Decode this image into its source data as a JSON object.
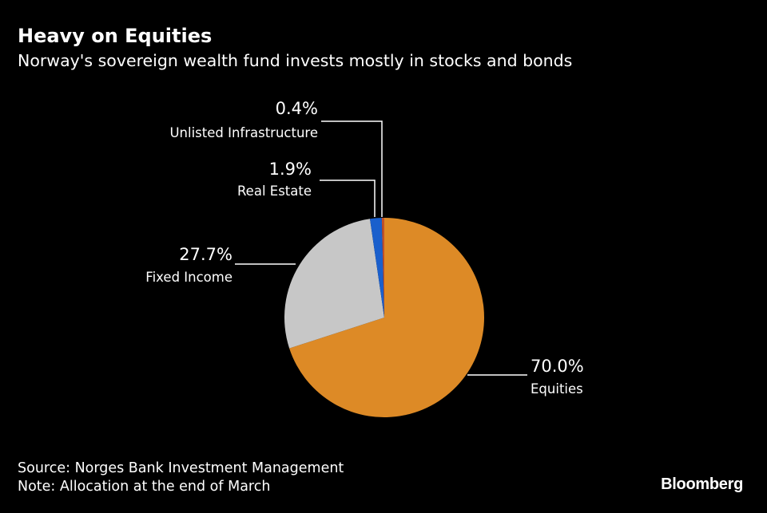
{
  "chart_data": {
    "type": "pie",
    "title": "Heavy on Equities",
    "subtitle": "Norway's sovereign wealth fund invests mostly in stocks and bonds",
    "start": "top",
    "direction": "clockwise",
    "slices": [
      {
        "label": "Equities",
        "value": 70.0,
        "display": "70.0%",
        "color": "#DD8A26"
      },
      {
        "label": "Fixed Income",
        "value": 27.7,
        "display": "27.7%",
        "color": "#C7C7C7"
      },
      {
        "label": "Real Estate",
        "value": 1.9,
        "display": "1.9%",
        "color": "#1A5FCC"
      },
      {
        "label": "Unlisted Infrastructure",
        "value": 0.4,
        "display": "0.4%",
        "color": "#C0502A"
      }
    ],
    "source": "Source: Norges Bank Investment Management",
    "note": "Note: Allocation at the end of March"
  },
  "brand": "Bloomberg"
}
